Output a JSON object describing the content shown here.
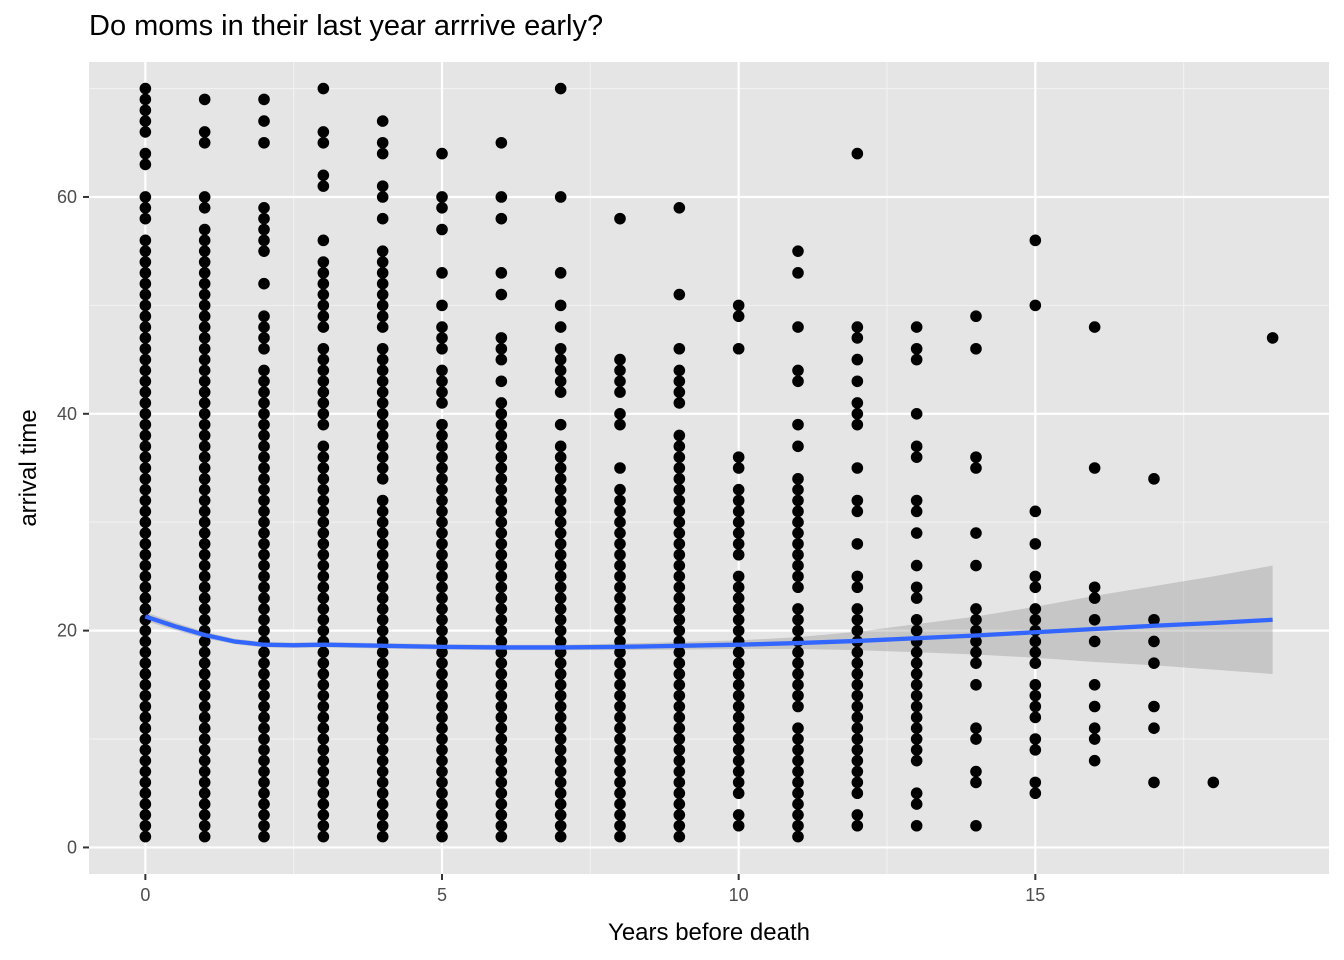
{
  "chart_data": {
    "type": "scatter",
    "title": "Do moms in their last year arrrive early?",
    "xlabel": "Years before death",
    "ylabel": "arrival time",
    "xlim": [
      -0.95,
      19.95
    ],
    "ylim": [
      -2.45,
      72.45
    ],
    "x_ticks": [
      0,
      5,
      10,
      15
    ],
    "y_ticks": [
      0,
      20,
      40,
      60
    ],
    "x_tick_labels": [
      "0",
      "5",
      "10",
      "15"
    ],
    "y_tick_labels": [
      "0",
      "20",
      "40",
      "60"
    ],
    "grid": true,
    "panel_background": "#e5e5e5",
    "point_color": "#000000",
    "columns": [
      {
        "x": 0,
        "y": [
          1,
          2,
          3,
          4,
          5,
          6,
          7,
          8,
          9,
          10,
          11,
          12,
          13,
          14,
          15,
          16,
          17,
          18,
          19,
          20,
          21,
          22,
          23,
          24,
          25,
          26,
          27,
          28,
          29,
          30,
          31,
          32,
          33,
          34,
          35,
          36,
          37,
          38,
          39,
          40,
          41,
          42,
          43,
          44,
          45,
          46,
          47,
          48,
          49,
          50,
          51,
          52,
          53,
          54,
          55,
          56,
          58,
          59,
          60,
          63,
          64,
          66,
          67,
          68,
          69,
          70
        ]
      },
      {
        "x": 1,
        "y": [
          1,
          2,
          3,
          4,
          5,
          6,
          7,
          8,
          9,
          10,
          11,
          12,
          13,
          14,
          15,
          16,
          17,
          18,
          19,
          20,
          21,
          22,
          23,
          24,
          25,
          26,
          27,
          28,
          29,
          30,
          31,
          32,
          33,
          34,
          35,
          36,
          37,
          38,
          39,
          40,
          41,
          42,
          43,
          44,
          45,
          46,
          47,
          48,
          49,
          50,
          51,
          52,
          53,
          54,
          55,
          56,
          57,
          59,
          60,
          65,
          66,
          69
        ]
      },
      {
        "x": 2,
        "y": [
          1,
          2,
          3,
          4,
          5,
          6,
          7,
          8,
          9,
          10,
          11,
          12,
          13,
          14,
          15,
          16,
          17,
          18,
          19,
          20,
          21,
          22,
          23,
          24,
          25,
          26,
          27,
          28,
          29,
          30,
          31,
          32,
          33,
          34,
          35,
          36,
          37,
          38,
          39,
          40,
          41,
          42,
          43,
          44,
          46,
          47,
          48,
          49,
          52,
          55,
          56,
          57,
          58,
          59,
          65,
          67,
          69
        ]
      },
      {
        "x": 3,
        "y": [
          1,
          2,
          3,
          4,
          5,
          6,
          7,
          8,
          9,
          10,
          11,
          12,
          13,
          14,
          15,
          16,
          17,
          18,
          19,
          20,
          21,
          22,
          23,
          24,
          25,
          26,
          27,
          28,
          29,
          30,
          31,
          32,
          33,
          34,
          35,
          36,
          37,
          39,
          40,
          41,
          42,
          43,
          44,
          45,
          46,
          48,
          49,
          50,
          51,
          52,
          53,
          54,
          56,
          61,
          62,
          65,
          66,
          70
        ]
      },
      {
        "x": 4,
        "y": [
          1,
          2,
          3,
          4,
          5,
          6,
          7,
          8,
          9,
          10,
          11,
          12,
          13,
          14,
          15,
          16,
          17,
          18,
          19,
          20,
          21,
          22,
          23,
          24,
          25,
          26,
          27,
          28,
          29,
          30,
          31,
          32,
          34,
          35,
          36,
          37,
          38,
          39,
          40,
          41,
          42,
          43,
          44,
          45,
          46,
          48,
          49,
          50,
          51,
          52,
          53,
          54,
          55,
          58,
          60,
          61,
          64,
          65,
          67
        ]
      },
      {
        "x": 5,
        "y": [
          1,
          2,
          3,
          4,
          5,
          6,
          7,
          8,
          9,
          10,
          11,
          12,
          13,
          14,
          15,
          16,
          17,
          18,
          19,
          20,
          21,
          22,
          23,
          24,
          25,
          26,
          27,
          28,
          29,
          30,
          31,
          32,
          33,
          34,
          35,
          36,
          37,
          38,
          39,
          41,
          42,
          43,
          44,
          46,
          47,
          48,
          50,
          53,
          57,
          59,
          60,
          64
        ]
      },
      {
        "x": 6,
        "y": [
          1,
          2,
          3,
          4,
          5,
          6,
          7,
          8,
          9,
          10,
          11,
          12,
          13,
          14,
          15,
          16,
          17,
          18,
          19,
          20,
          21,
          22,
          23,
          24,
          25,
          26,
          27,
          28,
          29,
          30,
          31,
          32,
          33,
          34,
          35,
          36,
          37,
          38,
          39,
          40,
          41,
          43,
          45,
          46,
          47,
          51,
          53,
          58,
          60,
          65
        ]
      },
      {
        "x": 7,
        "y": [
          1,
          2,
          3,
          4,
          5,
          6,
          7,
          8,
          9,
          10,
          11,
          12,
          13,
          14,
          15,
          16,
          17,
          18,
          19,
          20,
          21,
          22,
          23,
          24,
          25,
          26,
          27,
          28,
          29,
          30,
          31,
          32,
          33,
          34,
          35,
          36,
          37,
          39,
          42,
          43,
          44,
          45,
          46,
          48,
          50,
          53,
          60,
          70
        ]
      },
      {
        "x": 8,
        "y": [
          1,
          2,
          3,
          4,
          5,
          6,
          7,
          8,
          9,
          10,
          11,
          12,
          13,
          14,
          15,
          16,
          17,
          18,
          19,
          20,
          21,
          22,
          23,
          24,
          25,
          26,
          27,
          28,
          29,
          30,
          31,
          32,
          33,
          35,
          39,
          40,
          42,
          43,
          44,
          45,
          58
        ]
      },
      {
        "x": 9,
        "y": [
          1,
          2,
          3,
          4,
          5,
          6,
          7,
          8,
          9,
          10,
          11,
          12,
          13,
          14,
          15,
          16,
          17,
          18,
          19,
          20,
          21,
          22,
          23,
          24,
          25,
          26,
          27,
          28,
          29,
          30,
          31,
          32,
          33,
          34,
          35,
          36,
          37,
          38,
          41,
          42,
          43,
          44,
          46,
          51,
          59
        ]
      },
      {
        "x": 10,
        "y": [
          2,
          3,
          5,
          6,
          7,
          8,
          9,
          10,
          11,
          12,
          13,
          14,
          15,
          16,
          17,
          18,
          19,
          20,
          21,
          22,
          23,
          24,
          25,
          27,
          28,
          29,
          30,
          31,
          32,
          33,
          35,
          36,
          46,
          49,
          50
        ]
      },
      {
        "x": 11,
        "y": [
          1,
          2,
          3,
          4,
          5,
          6,
          7,
          8,
          9,
          10,
          11,
          13,
          14,
          15,
          16,
          17,
          18,
          19,
          20,
          21,
          22,
          24,
          25,
          26,
          27,
          28,
          29,
          30,
          31,
          32,
          33,
          34,
          37,
          39,
          43,
          44,
          48,
          53,
          55
        ]
      },
      {
        "x": 12,
        "y": [
          2,
          3,
          5,
          6,
          7,
          8,
          9,
          10,
          11,
          12,
          13,
          14,
          15,
          16,
          17,
          18,
          19,
          20,
          21,
          22,
          24,
          25,
          28,
          31,
          32,
          35,
          39,
          40,
          41,
          43,
          45,
          47,
          48,
          64
        ]
      },
      {
        "x": 13,
        "y": [
          2,
          4,
          5,
          8,
          9,
          10,
          11,
          12,
          13,
          14,
          15,
          16,
          17,
          18,
          19,
          20,
          21,
          23,
          24,
          26,
          29,
          31,
          32,
          36,
          37,
          40,
          45,
          46,
          48
        ]
      },
      {
        "x": 14,
        "y": [
          2,
          6,
          7,
          10,
          11,
          15,
          17,
          18,
          19,
          20,
          21,
          22,
          26,
          29,
          35,
          36,
          46,
          49
        ]
      },
      {
        "x": 15,
        "y": [
          5,
          6,
          9,
          10,
          12,
          13,
          14,
          15,
          17,
          18,
          19,
          20,
          21,
          22,
          24,
          25,
          28,
          31,
          50,
          56
        ]
      },
      {
        "x": 16,
        "y": [
          8,
          10,
          11,
          13,
          15,
          19,
          21,
          23,
          24,
          35,
          48
        ]
      },
      {
        "x": 17,
        "y": [
          6,
          11,
          13,
          17,
          19,
          21,
          34
        ]
      },
      {
        "x": 18,
        "y": [
          6
        ]
      },
      {
        "x": 19,
        "y": [
          47
        ]
      }
    ],
    "smooth": {
      "color": "#3366ff",
      "ribbon_color": "#999999",
      "x": [
        0,
        0.5,
        1,
        1.5,
        2,
        2.5,
        3,
        4,
        5,
        6,
        7,
        8,
        9,
        10,
        11,
        12,
        13,
        14,
        15,
        16,
        17,
        18,
        19
      ],
      "y": [
        21.3,
        20.4,
        19.6,
        19.0,
        18.7,
        18.65,
        18.7,
        18.6,
        18.5,
        18.45,
        18.45,
        18.5,
        18.6,
        18.7,
        18.85,
        19.05,
        19.3,
        19.55,
        19.85,
        20.15,
        20.45,
        20.7,
        21.0
      ],
      "lower": [
        20.9,
        20.05,
        19.3,
        18.75,
        18.45,
        18.4,
        18.45,
        18.35,
        18.25,
        18.2,
        18.2,
        18.2,
        18.25,
        18.3,
        18.3,
        18.2,
        18.0,
        17.8,
        17.5,
        17.1,
        16.8,
        16.4,
        16.0
      ],
      "upper": [
        21.7,
        20.75,
        19.9,
        19.25,
        18.95,
        18.9,
        18.95,
        18.85,
        18.75,
        18.7,
        18.7,
        18.8,
        18.95,
        19.1,
        19.4,
        19.9,
        20.6,
        21.3,
        22.2,
        23.2,
        24.1,
        25.0,
        26.0
      ]
    }
  }
}
